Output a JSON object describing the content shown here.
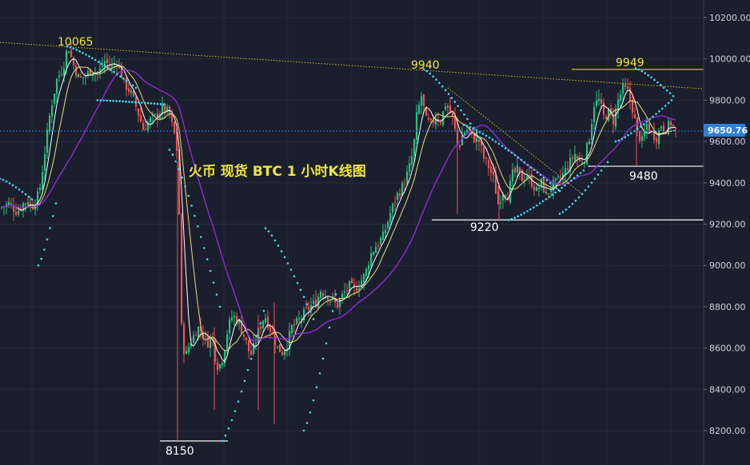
{
  "chart_data": {
    "type": "candlestick",
    "title": "火币 现货 BTC 1 小时K线图",
    "y_axis": {
      "ticks": [
        "10200.00",
        "10000.00",
        "9800.00",
        "9600.00",
        "9400.00",
        "9200.00",
        "9000.00",
        "8800.00",
        "8600.00",
        "8400.00",
        "8200.00"
      ],
      "tick_values": [
        10200,
        10000,
        9800,
        9600,
        9400,
        9200,
        9000,
        8800,
        8600,
        8400,
        8200
      ],
      "range": [
        8120,
        10330
      ]
    },
    "current_price": {
      "value": 9650.76,
      "label": "9650.76"
    },
    "annotations": [
      {
        "text": "10065",
        "value": 10065,
        "color": "yellow"
      },
      {
        "text": "9940",
        "value": 9940,
        "color": "yellow"
      },
      {
        "text": "9949",
        "value": 9949,
        "color": "yellow"
      },
      {
        "text": "8150",
        "value": 8150,
        "color": "white"
      },
      {
        "text": "9220",
        "value": 9220,
        "color": "white"
      },
      {
        "text": "9480",
        "value": 9480,
        "color": "white"
      }
    ],
    "colors": {
      "background": "#1b1e2d",
      "up": "#26c281",
      "down": "#ef5350",
      "ma_fast": "#ffffff",
      "ma_mid": "#e8e07a",
      "ma_slow": "#8e2bd6",
      "sar_dots": "#3fe0f0",
      "trendline": "#d4c020",
      "current_price_line": "#2f7fd8"
    },
    "price_path": [
      [
        0,
        9280
      ],
      [
        10,
        9300
      ],
      [
        20,
        9260
      ],
      [
        30,
        9310
      ],
      [
        40,
        9290
      ],
      [
        48,
        9350
      ],
      [
        55,
        9550
      ],
      [
        62,
        9750
      ],
      [
        70,
        9900
      ],
      [
        78,
        9960
      ],
      [
        84,
        10065
      ],
      [
        90,
        9980
      ],
      [
        98,
        9900
      ],
      [
        106,
        9920
      ],
      [
        114,
        9950
      ],
      [
        122,
        9930
      ],
      [
        130,
        9990
      ],
      [
        138,
        9960
      ],
      [
        146,
        9990
      ],
      [
        154,
        9880
      ],
      [
        162,
        9840
      ],
      [
        170,
        9760
      ],
      [
        178,
        9660
      ],
      [
        186,
        9700
      ],
      [
        194,
        9720
      ],
      [
        202,
        9760
      ],
      [
        210,
        9740
      ],
      [
        218,
        9620
      ],
      [
        222,
        9500
      ],
      [
        224,
        9000
      ],
      [
        226,
        8700
      ],
      [
        228,
        8600
      ],
      [
        232,
        8570
      ],
      [
        236,
        8620
      ],
      [
        240,
        8650
      ],
      [
        246,
        8700
      ],
      [
        252,
        8680
      ],
      [
        258,
        8620
      ],
      [
        264,
        8660
      ],
      [
        268,
        8560
      ],
      [
        272,
        8500
      ],
      [
        278,
        8560
      ],
      [
        284,
        8700
      ],
      [
        290,
        8760
      ],
      [
        298,
        8720
      ],
      [
        306,
        8640
      ],
      [
        312,
        8560
      ],
      [
        318,
        8620
      ],
      [
        322,
        8680
      ],
      [
        326,
        8720
      ],
      [
        330,
        8760
      ],
      [
        336,
        8700
      ],
      [
        340,
        8660
      ],
      [
        346,
        8600
      ],
      [
        352,
        8580
      ],
      [
        358,
        8620
      ],
      [
        364,
        8700
      ],
      [
        370,
        8720
      ],
      [
        378,
        8760
      ],
      [
        386,
        8800
      ],
      [
        394,
        8820
      ],
      [
        400,
        8880
      ],
      [
        406,
        8860
      ],
      [
        414,
        8840
      ],
      [
        420,
        8800
      ],
      [
        428,
        8860
      ],
      [
        436,
        8900
      ],
      [
        442,
        8880
      ],
      [
        450,
        8920
      ],
      [
        456,
        8960
      ],
      [
        462,
        9050
      ],
      [
        470,
        9100
      ],
      [
        478,
        9140
      ],
      [
        486,
        9240
      ],
      [
        494,
        9330
      ],
      [
        502,
        9380
      ],
      [
        510,
        9460
      ],
      [
        516,
        9560
      ],
      [
        520,
        9720
      ],
      [
        526,
        9820
      ],
      [
        532,
        9700
      ],
      [
        538,
        9680
      ],
      [
        544,
        9720
      ],
      [
        550,
        9700
      ],
      [
        556,
        9780
      ],
      [
        560,
        9760
      ],
      [
        566,
        9700
      ],
      [
        572,
        9560
      ],
      [
        578,
        9640
      ],
      [
        584,
        9660
      ],
      [
        590,
        9620
      ],
      [
        598,
        9600
      ],
      [
        604,
        9520
      ],
      [
        610,
        9480
      ],
      [
        616,
        9420
      ],
      [
        622,
        9300
      ],
      [
        628,
        9360
      ],
      [
        634,
        9340
      ],
      [
        640,
        9440
      ],
      [
        646,
        9460
      ],
      [
        652,
        9420
      ],
      [
        658,
        9440
      ],
      [
        664,
        9400
      ],
      [
        670,
        9360
      ],
      [
        676,
        9400
      ],
      [
        682,
        9340
      ],
      [
        688,
        9380
      ],
      [
        694,
        9400
      ],
      [
        700,
        9420
      ],
      [
        706,
        9460
      ],
      [
        712,
        9500
      ],
      [
        718,
        9540
      ],
      [
        724,
        9500
      ],
      [
        730,
        9520
      ],
      [
        736,
        9620
      ],
      [
        742,
        9780
      ],
      [
        748,
        9800
      ],
      [
        754,
        9720
      ],
      [
        760,
        9740
      ],
      [
        766,
        9700
      ],
      [
        772,
        9800
      ],
      [
        778,
        9860
      ],
      [
        784,
        9840
      ],
      [
        790,
        9760
      ],
      [
        796,
        9640
      ],
      [
        802,
        9600
      ],
      [
        808,
        9680
      ],
      [
        814,
        9640
      ],
      [
        820,
        9620
      ],
      [
        826,
        9680
      ],
      [
        832,
        9660
      ],
      [
        838,
        9690
      ],
      [
        844,
        9650
      ]
    ]
  }
}
